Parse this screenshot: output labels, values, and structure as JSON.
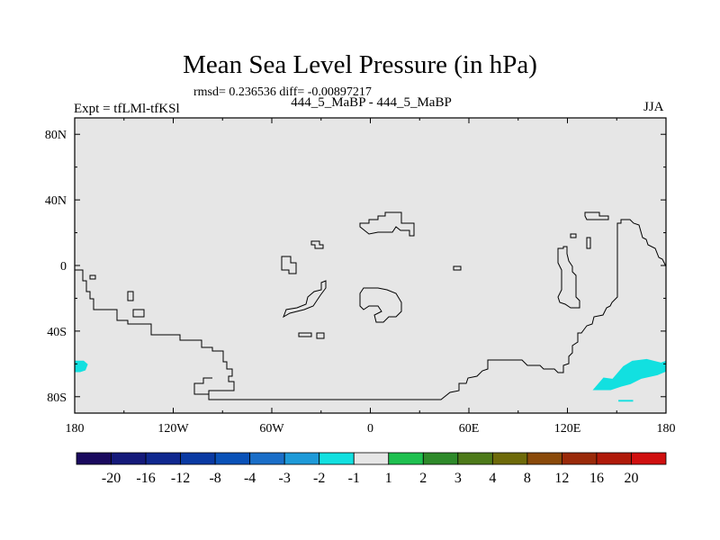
{
  "chart_data": {
    "type": "heatmap",
    "title": "Mean Sea Level Pressure (in hPa)",
    "stats_line": "rmsd= 0.236536 diff= -0.00897217",
    "subtitle": "444_5_MaBP - 444_5_MaBP",
    "left_label": "Expt = tfLMl-tfKSl",
    "right_label": "JJA",
    "x_ticks": [
      "180",
      "120W",
      "60W",
      "0",
      "60E",
      "120E",
      "180"
    ],
    "x_tick_values": [
      -180,
      -120,
      -60,
      0,
      60,
      120,
      180
    ],
    "y_ticks": [
      "80N",
      "40N",
      "0",
      "40S",
      "80S"
    ],
    "y_tick_values": [
      80,
      40,
      0,
      -40,
      -80
    ],
    "xlim": [
      -180,
      180
    ],
    "ylim": [
      -90,
      90
    ],
    "background_value_bin": "-1 to 1",
    "colorbar": {
      "labels": [
        "-20",
        "-16",
        "-12",
        "-8",
        "-4",
        "-3",
        "-2",
        "-1",
        "1",
        "2",
        "3",
        "4",
        "8",
        "12",
        "16",
        "20"
      ],
      "colors": [
        "#1a0a5e",
        "#151a7a",
        "#10288f",
        "#0a3aa3",
        "#0a52b8",
        "#1a6ec8",
        "#1e9ad8",
        "#12e0e0",
        "#e6e6e6",
        "#1fc050",
        "#2e8a2a",
        "#4e7a1a",
        "#6e6a0a",
        "#8a4a0a",
        "#9a2a0a",
        "#b01a0a",
        "#d01010"
      ]
    },
    "anomaly_regions": [
      {
        "name": "south-atlantic-west-edge",
        "value_bin": "-2 to -1",
        "lon_range": [
          -180,
          -172
        ],
        "lat_range": [
          -65,
          -58
        ]
      },
      {
        "name": "south-pacific-east",
        "value_bin": "-2 to -1",
        "lon_range": [
          120,
          180
        ],
        "lat_range": [
          -76,
          -57
        ]
      },
      {
        "name": "antarctic-coast-small",
        "value_bin": "-2 to -1",
        "lon_range": [
          151,
          160
        ],
        "lat_range": [
          -83,
          -82
        ]
      }
    ]
  },
  "colors": {
    "background": "#ffffff",
    "neutral_fill": "#e6e6e6",
    "anomaly_fill": "#12e0e0",
    "coast": "#000000"
  }
}
